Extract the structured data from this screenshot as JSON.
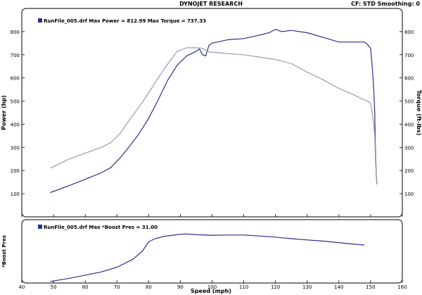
{
  "header": {
    "title": "DYNOJET RESEARCH",
    "right": "CF: STD   Smoothing: 0"
  },
  "chart_data": [
    {
      "type": "line",
      "xlabel": "Speed (mph)",
      "ylabel": "Power (hp)",
      "ylabel_right": "Torque (ft-lbs)",
      "xlim": [
        40,
        160
      ],
      "ylim": [
        0,
        900
      ],
      "x_ticks": [
        40,
        50,
        60,
        70,
        80,
        90,
        100,
        110,
        120,
        130,
        140,
        150,
        160
      ],
      "y_ticks": [
        100,
        200,
        300,
        400,
        500,
        600,
        700,
        800
      ],
      "grid": false,
      "legend": {
        "text": "RunFile_005.drf Max Power = 812.99    Max Torque = 737.33",
        "position": "top-left"
      },
      "series": [
        {
          "name": "Power",
          "color": "#2e2e8c",
          "x": [
            49,
            55,
            60,
            65,
            68,
            71,
            74,
            77,
            80,
            83,
            86,
            89,
            92,
            95,
            96,
            97,
            98,
            99,
            100,
            105,
            110,
            115,
            118,
            120,
            122,
            125,
            130,
            135,
            140,
            145,
            148,
            149,
            150,
            150.5,
            151,
            151.3,
            151.5,
            151.8,
            152
          ],
          "y": [
            105,
            135,
            162,
            190,
            212,
            255,
            305,
            360,
            425,
            505,
            590,
            655,
            695,
            715,
            725,
            700,
            695,
            740,
            750,
            765,
            770,
            785,
            795,
            810,
            800,
            805,
            795,
            775,
            755,
            755,
            755,
            745,
            728,
            650,
            550,
            450,
            300,
            180,
            140
          ]
        },
        {
          "name": "Torque",
          "color": "#9a9ab8",
          "x": [
            49,
            55,
            60,
            65,
            68,
            71,
            74,
            77,
            80,
            83,
            86,
            89,
            92,
            95,
            97,
            99,
            101,
            105,
            110,
            115,
            120,
            125,
            130,
            135,
            140,
            145,
            148,
            149,
            150,
            150.5,
            151,
            151.3,
            151.5,
            151.8,
            152
          ],
          "y": [
            210,
            250,
            275,
            300,
            320,
            360,
            420,
            475,
            535,
            600,
            660,
            715,
            730,
            730,
            728,
            712,
            710,
            705,
            700,
            690,
            680,
            662,
            625,
            592,
            555,
            525,
            505,
            500,
            490,
            450,
            400,
            350,
            260,
            170,
            140
          ]
        }
      ]
    },
    {
      "type": "line",
      "xlabel": "Speed (mph)",
      "ylabel": "*Boost Pres",
      "xlim": [
        40,
        160
      ],
      "ylim": [
        0,
        40
      ],
      "x_ticks": [
        40,
        50,
        60,
        70,
        80,
        90,
        100,
        110,
        120,
        130,
        140,
        150,
        160
      ],
      "y_ticks": [],
      "grid": false,
      "legend": {
        "text": "RunFile_005.drf Max *Boost Pres = 31.00",
        "position": "top-left"
      },
      "series": [
        {
          "name": "*Boost Pres",
          "color": "#2e2e8c",
          "x": [
            49,
            55,
            60,
            65,
            70,
            75,
            78,
            80,
            82,
            85,
            90,
            92,
            95,
            100,
            105,
            110,
            115,
            120,
            125,
            130,
            135,
            140,
            145,
            148
          ],
          "y": [
            1,
            3,
            5,
            7,
            10,
            15,
            20,
            26,
            28,
            29.5,
            30.8,
            31,
            30.5,
            30.2,
            30.3,
            30.3,
            29.7,
            29,
            28,
            27.2,
            26.5,
            25.5,
            24.5,
            24
          ]
        }
      ]
    }
  ]
}
